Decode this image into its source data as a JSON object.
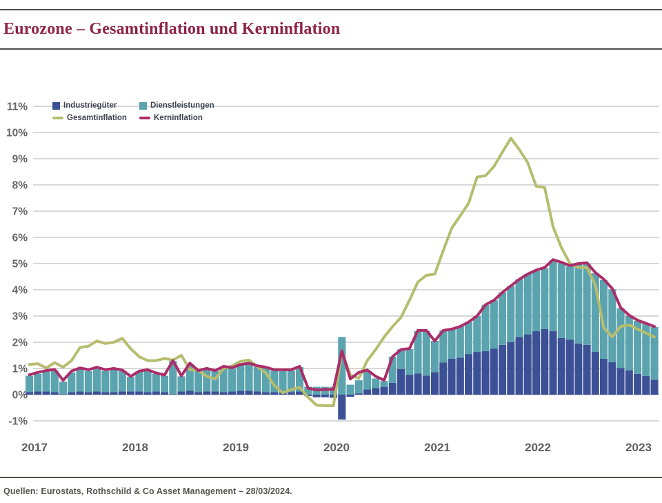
{
  "header": {
    "title": "Eurozone – Gesamtinflation und Kerninflation"
  },
  "footer": {
    "source": "Quellen: Eurostats, Rothschild & Co Asset Management – 28/03/2024."
  },
  "colors": {
    "title": "#8e2346",
    "rule": "#4c4b47",
    "grid": "#d8d8d8",
    "axis_text": "#666666",
    "legend_text": "#3e4450",
    "industrieguester_blue": "#3b5095",
    "dienstleistungen_teal": "#5ba3ae",
    "gesamtinflation_olive": "#b6bd6f",
    "kerninflation_magenta": "#ab2d68"
  },
  "legend": {
    "items": [
      {
        "label": "Industriegüter",
        "swatch": "square",
        "color": "#3b5095"
      },
      {
        "label": "Dienstleistungen",
        "swatch": "square",
        "color": "#5ba3ae"
      },
      {
        "label": "Gesamtinflation",
        "swatch": "dash",
        "color": "#b6bd6f"
      },
      {
        "label": "Kerninflation",
        "swatch": "dash",
        "color": "#ab2d68"
      }
    ]
  },
  "chart_data": {
    "type": "combo: stacked monthly bars + lines",
    "title": "Eurozone – Gesamtinflation und Kerninflation",
    "x_years": [
      "2017",
      "2018",
      "2019",
      "2020",
      "2021",
      "2022",
      "2023"
    ],
    "x_frequency": "monthly from Jan 2017 to Mar 2023 (75 points)",
    "ylim": [
      -1,
      11
    ],
    "y_ticks": [
      "11%",
      "10%",
      "9%",
      "8%",
      "7%",
      "6%",
      "5%",
      "4%",
      "3%",
      "2%",
      "1%",
      "0%",
      "-1%"
    ],
    "grid": true,
    "legend_position": "top-left inside plot",
    "series": [
      {
        "name": "Industriegüter",
        "type": "bar",
        "color": "#3b5095",
        "values": [
          0.1,
          0.12,
          0.12,
          0.1,
          0.02,
          0.1,
          0.12,
          0.1,
          0.12,
          0.1,
          0.1,
          0.12,
          0.12,
          0.12,
          0.1,
          0.12,
          0.1,
          0.02,
          0.12,
          0.15,
          0.1,
          0.12,
          0.12,
          0.1,
          0.12,
          0.15,
          0.15,
          0.12,
          0.1,
          0.1,
          0.08,
          0.1,
          0.12,
          -0.05,
          -0.1,
          -0.1,
          -0.12,
          -0.95,
          -0.08,
          0.05,
          0.2,
          0.25,
          0.3,
          0.45,
          0.98,
          0.76,
          0.81,
          0.73,
          0.86,
          1.23,
          1.37,
          1.41,
          1.55,
          1.63,
          1.66,
          1.75,
          1.9,
          2.0,
          2.2,
          2.3,
          2.42,
          2.5,
          2.42,
          2.16,
          2.1,
          1.95,
          1.9,
          1.63,
          1.37,
          1.24,
          1.02,
          0.93,
          0.79,
          0.71,
          0.57
        ]
      },
      {
        "name": "Dienstleistungen",
        "type": "bar",
        "color": "#5ba3ae",
        "values": [
          0.62,
          0.68,
          0.76,
          0.82,
          0.48,
          0.75,
          0.86,
          0.8,
          0.88,
          0.8,
          0.85,
          0.78,
          0.56,
          0.76,
          0.82,
          0.68,
          0.62,
          1.26,
          0.58,
          1.03,
          0.8,
          0.85,
          0.78,
          0.95,
          0.88,
          0.97,
          1.02,
          0.95,
          0.92,
          0.82,
          0.84,
          0.82,
          0.93,
          0.3,
          0.3,
          0.3,
          0.3,
          2.2,
          0.38,
          0.5,
          0.7,
          0.37,
          0.22,
          1.0,
          0.75,
          0.98,
          1.62,
          1.7,
          1.19,
          1.22,
          1.13,
          1.19,
          1.22,
          1.37,
          1.77,
          1.85,
          2.0,
          2.15,
          2.2,
          2.3,
          2.3,
          2.32,
          2.7,
          2.86,
          2.79,
          3.02,
          3.1,
          3.0,
          3.0,
          2.78,
          2.28,
          2.08,
          2.03,
          1.99,
          2.01
        ]
      },
      {
        "name": "Gesamtinflation",
        "type": "line",
        "color": "#b6bd6f",
        "values": [
          1.15,
          1.18,
          1.02,
          1.22,
          1.05,
          1.3,
          1.8,
          1.85,
          2.05,
          1.95,
          2.0,
          2.15,
          1.75,
          1.45,
          1.3,
          1.3,
          1.38,
          1.32,
          1.5,
          0.95,
          0.93,
          0.7,
          0.6,
          1.0,
          1.1,
          1.27,
          1.32,
          1.07,
          0.83,
          0.35,
          0.07,
          0.2,
          0.28,
          -0.1,
          -0.4,
          -0.42,
          -0.42,
          1.65,
          0.75,
          0.62,
          1.3,
          1.72,
          2.2,
          2.6,
          2.95,
          3.6,
          4.3,
          4.55,
          4.6,
          5.5,
          6.35,
          6.82,
          7.3,
          8.3,
          8.35,
          8.7,
          9.25,
          9.78,
          9.35,
          8.85,
          7.95,
          7.9,
          6.4,
          5.6,
          5.0,
          4.85,
          4.85,
          4.18,
          2.55,
          2.2,
          2.6,
          2.66,
          2.5,
          2.35,
          2.2
        ]
      },
      {
        "name": "Kerninflation",
        "type": "line",
        "color": "#ab2d68",
        "values": [
          0.76,
          0.85,
          0.92,
          0.96,
          0.55,
          0.9,
          1.02,
          0.95,
          1.05,
          0.95,
          1.0,
          0.94,
          0.7,
          0.9,
          0.95,
          0.83,
          0.75,
          1.3,
          0.72,
          1.2,
          0.92,
          1.0,
          0.92,
          1.08,
          1.03,
          1.15,
          1.2,
          1.1,
          1.05,
          0.95,
          0.95,
          0.95,
          1.08,
          0.25,
          0.18,
          0.2,
          0.2,
          1.67,
          0.6,
          0.85,
          0.94,
          0.7,
          0.55,
          1.45,
          1.72,
          1.76,
          2.45,
          2.45,
          2.05,
          2.45,
          2.5,
          2.6,
          2.77,
          3.0,
          3.43,
          3.6,
          3.9,
          4.15,
          4.4,
          4.6,
          4.75,
          4.85,
          5.15,
          5.05,
          4.92,
          5.0,
          5.03,
          4.66,
          4.4,
          4.05,
          3.32,
          3.03,
          2.84,
          2.72,
          2.6
        ]
      }
    ]
  }
}
